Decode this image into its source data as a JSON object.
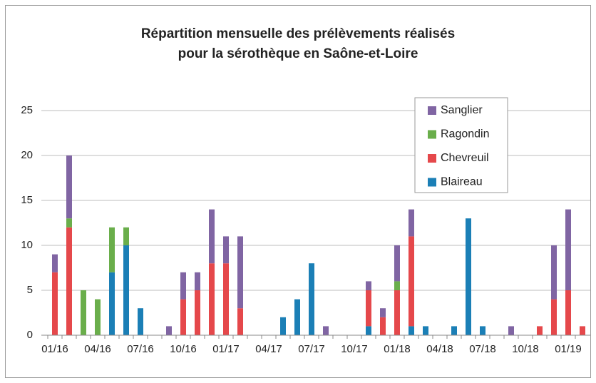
{
  "chart_data": {
    "type": "stacked_bar",
    "title": [
      "Répartition mensuelle des prélèvements réalisés",
      "pour la sérothèque en Saône-et-Loire"
    ],
    "categories": [
      "01/16",
      null,
      null,
      "04/16",
      null,
      null,
      "07/16",
      null,
      null,
      "10/16",
      null,
      null,
      "01/17",
      null,
      null,
      "04/17",
      null,
      null,
      "07/17",
      null,
      null,
      "10/17",
      null,
      null,
      "01/18",
      null,
      null,
      "04/18",
      null,
      null,
      "07/18",
      null,
      null,
      "10/18",
      null,
      null,
      "01/19",
      null
    ],
    "series": [
      {
        "name": "Blaireau",
        "color": "#1b7fb6",
        "values": [
          0,
          0,
          0,
          0,
          7,
          10,
          3,
          0,
          0,
          0,
          0,
          0,
          0,
          0,
          0,
          0,
          2,
          4,
          8,
          0,
          0,
          0,
          1,
          0,
          0,
          1,
          1,
          0,
          1,
          13,
          1,
          0,
          0,
          0,
          0,
          0,
          0,
          0
        ]
      },
      {
        "name": "Chevreuil",
        "color": "#e5484b",
        "values": [
          7,
          12,
          0,
          0,
          0,
          0,
          0,
          0,
          0,
          4,
          5,
          8,
          8,
          3,
          0,
          0,
          0,
          0,
          0,
          0,
          0,
          0,
          4,
          2,
          5,
          10,
          0,
          0,
          0,
          0,
          0,
          0,
          0,
          0,
          1,
          4,
          5,
          1
        ]
      },
      {
        "name": "Ragondin",
        "color": "#6aae4b",
        "values": [
          0,
          1,
          5,
          4,
          5,
          2,
          0,
          0,
          0,
          0,
          0,
          0,
          0,
          0,
          0,
          0,
          0,
          0,
          0,
          0,
          0,
          0,
          0,
          0,
          1,
          0,
          0,
          0,
          0,
          0,
          0,
          0,
          0,
          0,
          0,
          0,
          0,
          0
        ]
      },
      {
        "name": "Sanglier",
        "color": "#8065a3",
        "values": [
          2,
          7,
          0,
          0,
          0,
          0,
          0,
          0,
          1,
          3,
          2,
          6,
          3,
          8,
          0,
          0,
          0,
          0,
          0,
          1,
          0,
          0,
          1,
          1,
          4,
          3,
          0,
          0,
          0,
          0,
          0,
          0,
          1,
          0,
          0,
          6,
          9,
          0
        ]
      }
    ],
    "ylim": [
      0,
      25
    ],
    "yticks": [
      0,
      5,
      10,
      15,
      20,
      25
    ],
    "grid": true,
    "legend": "top-right"
  }
}
